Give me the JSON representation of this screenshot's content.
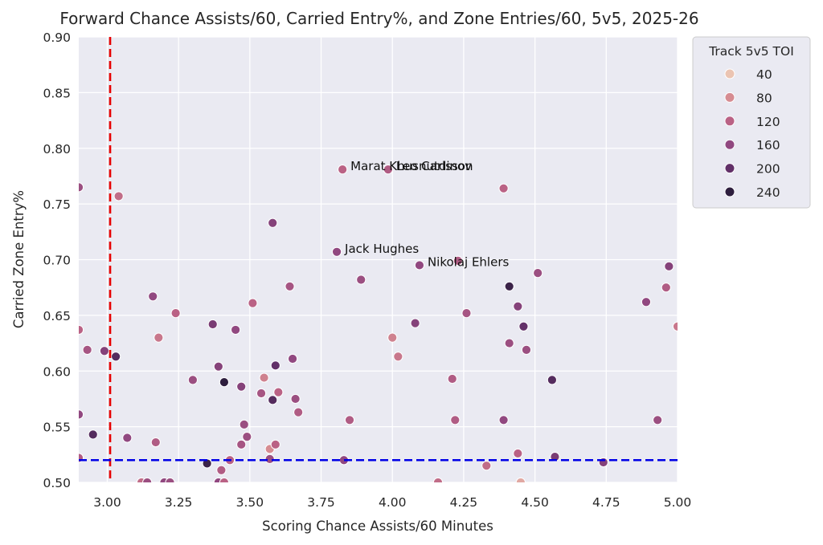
{
  "chart_data": {
    "type": "scatter",
    "title": "Forward Chance Assists/60, Carried Entry%, and Zone Entries/60, 5v5, 2025-26",
    "xlabel": "Scoring Chance Assists/60 Minutes",
    "ylabel": "Carried Zone Entry%",
    "xlim": [
      2.9,
      5.0
    ],
    "ylim": [
      0.5,
      0.9
    ],
    "xticks": [
      "3.00",
      "3.25",
      "3.50",
      "3.75",
      "4.00",
      "4.25",
      "4.50",
      "4.75",
      "5.00"
    ],
    "yticks": [
      "0.50",
      "0.55",
      "0.60",
      "0.65",
      "0.70",
      "0.75",
      "0.80",
      "0.85",
      "0.90"
    ],
    "grid": true,
    "ref_lines": [
      {
        "axis": "x",
        "value": 3.01,
        "color": "#e60000",
        "style": "dashed"
      },
      {
        "axis": "y",
        "value": 0.52,
        "color": "#0000e6",
        "style": "dashed"
      }
    ],
    "legend": {
      "title": "Track 5v5 TOI",
      "placement": "outside-top-right",
      "entries": [
        {
          "label": "40",
          "value": 40
        },
        {
          "label": "80",
          "value": 80
        },
        {
          "label": "120",
          "value": 120
        },
        {
          "label": "160",
          "value": 160
        },
        {
          "label": "200",
          "value": 200
        },
        {
          "label": "240",
          "value": 240
        }
      ]
    },
    "annotations": [
      {
        "text": "Marat Khusnutdinov",
        "x": 3.825,
        "y": 0.781
      },
      {
        "text": "Leo Carlsson",
        "x": 3.985,
        "y": 0.781
      },
      {
        "text": "Jack Hughes",
        "x": 3.805,
        "y": 0.707
      },
      {
        "text": "Nikolaj Ehlers",
        "x": 4.095,
        "y": 0.695
      }
    ],
    "points": [
      {
        "x": 2.9,
        "y": 0.765,
        "toi": 150
      },
      {
        "x": 3.04,
        "y": 0.757,
        "toi": 110
      },
      {
        "x": 2.9,
        "y": 0.637,
        "toi": 120
      },
      {
        "x": 2.93,
        "y": 0.619,
        "toi": 140
      },
      {
        "x": 2.99,
        "y": 0.618,
        "toi": 170
      },
      {
        "x": 3.03,
        "y": 0.613,
        "toi": 210
      },
      {
        "x": 2.9,
        "y": 0.561,
        "toi": 160
      },
      {
        "x": 2.95,
        "y": 0.543,
        "toi": 210
      },
      {
        "x": 3.07,
        "y": 0.54,
        "toi": 160
      },
      {
        "x": 2.9,
        "y": 0.522,
        "toi": 130
      },
      {
        "x": 3.16,
        "y": 0.667,
        "toi": 160
      },
      {
        "x": 3.24,
        "y": 0.652,
        "toi": 120
      },
      {
        "x": 3.18,
        "y": 0.63,
        "toi": 100
      },
      {
        "x": 3.3,
        "y": 0.592,
        "toi": 150
      },
      {
        "x": 3.17,
        "y": 0.536,
        "toi": 130
      },
      {
        "x": 3.12,
        "y": 0.5,
        "toi": 110
      },
      {
        "x": 3.14,
        "y": 0.5,
        "toi": 150
      },
      {
        "x": 3.2,
        "y": 0.5,
        "toi": 160
      },
      {
        "x": 3.22,
        "y": 0.5,
        "toi": 150
      },
      {
        "x": 3.37,
        "y": 0.642,
        "toi": 180
      },
      {
        "x": 3.39,
        "y": 0.604,
        "toi": 170
      },
      {
        "x": 3.41,
        "y": 0.59,
        "toi": 240
      },
      {
        "x": 3.35,
        "y": 0.517,
        "toi": 230
      },
      {
        "x": 3.4,
        "y": 0.511,
        "toi": 130
      },
      {
        "x": 3.39,
        "y": 0.5,
        "toi": 160
      },
      {
        "x": 3.41,
        "y": 0.5,
        "toi": 120
      },
      {
        "x": 3.43,
        "y": 0.52,
        "toi": 120
      },
      {
        "x": 3.45,
        "y": 0.637,
        "toi": 160
      },
      {
        "x": 3.47,
        "y": 0.586,
        "toi": 170
      },
      {
        "x": 3.48,
        "y": 0.552,
        "toi": 150
      },
      {
        "x": 3.49,
        "y": 0.541,
        "toi": 150
      },
      {
        "x": 3.47,
        "y": 0.534,
        "toi": 140
      },
      {
        "x": 3.51,
        "y": 0.661,
        "toi": 120
      },
      {
        "x": 3.54,
        "y": 0.58,
        "toi": 140
      },
      {
        "x": 3.55,
        "y": 0.594,
        "toi": 90
      },
      {
        "x": 3.57,
        "y": 0.53,
        "toi": 80
      },
      {
        "x": 3.57,
        "y": 0.521,
        "toi": 150
      },
      {
        "x": 3.58,
        "y": 0.733,
        "toi": 170
      },
      {
        "x": 3.59,
        "y": 0.605,
        "toi": 200
      },
      {
        "x": 3.58,
        "y": 0.574,
        "toi": 210
      },
      {
        "x": 3.6,
        "y": 0.581,
        "toi": 120
      },
      {
        "x": 3.59,
        "y": 0.534,
        "toi": 120
      },
      {
        "x": 3.64,
        "y": 0.676,
        "toi": 140
      },
      {
        "x": 3.65,
        "y": 0.611,
        "toi": 160
      },
      {
        "x": 3.66,
        "y": 0.575,
        "toi": 150
      },
      {
        "x": 3.67,
        "y": 0.563,
        "toi": 130
      },
      {
        "x": 3.825,
        "y": 0.781,
        "toi": 120
      },
      {
        "x": 3.985,
        "y": 0.781,
        "toi": 130
      },
      {
        "x": 3.805,
        "y": 0.707,
        "toi": 160
      },
      {
        "x": 3.89,
        "y": 0.682,
        "toi": 150
      },
      {
        "x": 3.85,
        "y": 0.556,
        "toi": 130
      },
      {
        "x": 3.83,
        "y": 0.52,
        "toi": 160
      },
      {
        "x": 4.0,
        "y": 0.63,
        "toi": 90
      },
      {
        "x": 4.02,
        "y": 0.613,
        "toi": 100
      },
      {
        "x": 4.095,
        "y": 0.695,
        "toi": 160
      },
      {
        "x": 4.08,
        "y": 0.643,
        "toi": 170
      },
      {
        "x": 4.16,
        "y": 0.5,
        "toi": 110
      },
      {
        "x": 4.21,
        "y": 0.593,
        "toi": 130
      },
      {
        "x": 4.22,
        "y": 0.556,
        "toi": 130
      },
      {
        "x": 4.23,
        "y": 0.699,
        "toi": 130
      },
      {
        "x": 4.26,
        "y": 0.652,
        "toi": 140
      },
      {
        "x": 4.33,
        "y": 0.515,
        "toi": 110
      },
      {
        "x": 4.39,
        "y": 0.764,
        "toi": 120
      },
      {
        "x": 4.39,
        "y": 0.556,
        "toi": 160
      },
      {
        "x": 4.41,
        "y": 0.676,
        "toi": 230
      },
      {
        "x": 4.41,
        "y": 0.625,
        "toi": 150
      },
      {
        "x": 4.44,
        "y": 0.658,
        "toi": 170
      },
      {
        "x": 4.44,
        "y": 0.526,
        "toi": 120
      },
      {
        "x": 4.45,
        "y": 0.5,
        "toi": 60
      },
      {
        "x": 4.46,
        "y": 0.64,
        "toi": 200
      },
      {
        "x": 4.47,
        "y": 0.619,
        "toi": 150
      },
      {
        "x": 4.51,
        "y": 0.688,
        "toi": 150
      },
      {
        "x": 4.56,
        "y": 0.592,
        "toi": 210
      },
      {
        "x": 4.57,
        "y": 0.523,
        "toi": 180
      },
      {
        "x": 4.74,
        "y": 0.518,
        "toi": 170
      },
      {
        "x": 4.89,
        "y": 0.662,
        "toi": 160
      },
      {
        "x": 4.93,
        "y": 0.556,
        "toi": 150
      },
      {
        "x": 4.96,
        "y": 0.675,
        "toi": 130
      },
      {
        "x": 4.97,
        "y": 0.694,
        "toi": 170
      },
      {
        "x": 5.0,
        "y": 0.64,
        "toi": 100
      }
    ]
  }
}
